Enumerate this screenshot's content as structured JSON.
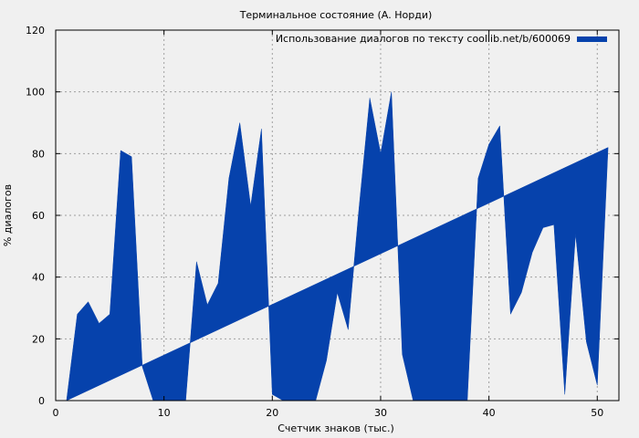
{
  "chart_data": {
    "type": "area",
    "title": "Терминальное состояние (А. Норди)",
    "xlabel": "Счетчик знаков (тыс.)",
    "ylabel": "% диалогов",
    "xlim": [
      0,
      52
    ],
    "ylim": [
      0,
      120
    ],
    "x_ticks": [
      0,
      10,
      20,
      30,
      40,
      50
    ],
    "y_ticks": [
      0,
      20,
      40,
      60,
      80,
      100,
      120
    ],
    "grid": true,
    "legend_position": "top-right",
    "colors": {
      "fill": "#0642ac",
      "background": "#f0f0f0",
      "grid": "#a0a0a0",
      "axis": "#000000"
    },
    "series": [
      {
        "name": "Использование диалогов по тексту coollib.net/b/600069",
        "points": [
          [
            1,
            0
          ],
          [
            2,
            28
          ],
          [
            3,
            32
          ],
          [
            4,
            25
          ],
          [
            5,
            28
          ],
          [
            6,
            81
          ],
          [
            7,
            79
          ],
          [
            8,
            11
          ],
          [
            9,
            0
          ],
          [
            12,
            0
          ],
          [
            13,
            45
          ],
          [
            14,
            31
          ],
          [
            15,
            38
          ],
          [
            16,
            72
          ],
          [
            17,
            90
          ],
          [
            18,
            63
          ],
          [
            19,
            88
          ],
          [
            20,
            2
          ],
          [
            21,
            0
          ],
          [
            24,
            0
          ],
          [
            25,
            13
          ],
          [
            26,
            35
          ],
          [
            27,
            23
          ],
          [
            28,
            62
          ],
          [
            29,
            98
          ],
          [
            30,
            80
          ],
          [
            31,
            100
          ],
          [
            32,
            15
          ],
          [
            33,
            0
          ],
          [
            38,
            0
          ],
          [
            39,
            72
          ],
          [
            40,
            83
          ],
          [
            41,
            89
          ],
          [
            42,
            28
          ],
          [
            43,
            35
          ],
          [
            44,
            48
          ],
          [
            45,
            56
          ],
          [
            46,
            57
          ],
          [
            47,
            2
          ],
          [
            48,
            54
          ],
          [
            49,
            19
          ],
          [
            50,
            5
          ],
          [
            51,
            82
          ]
        ]
      }
    ]
  }
}
